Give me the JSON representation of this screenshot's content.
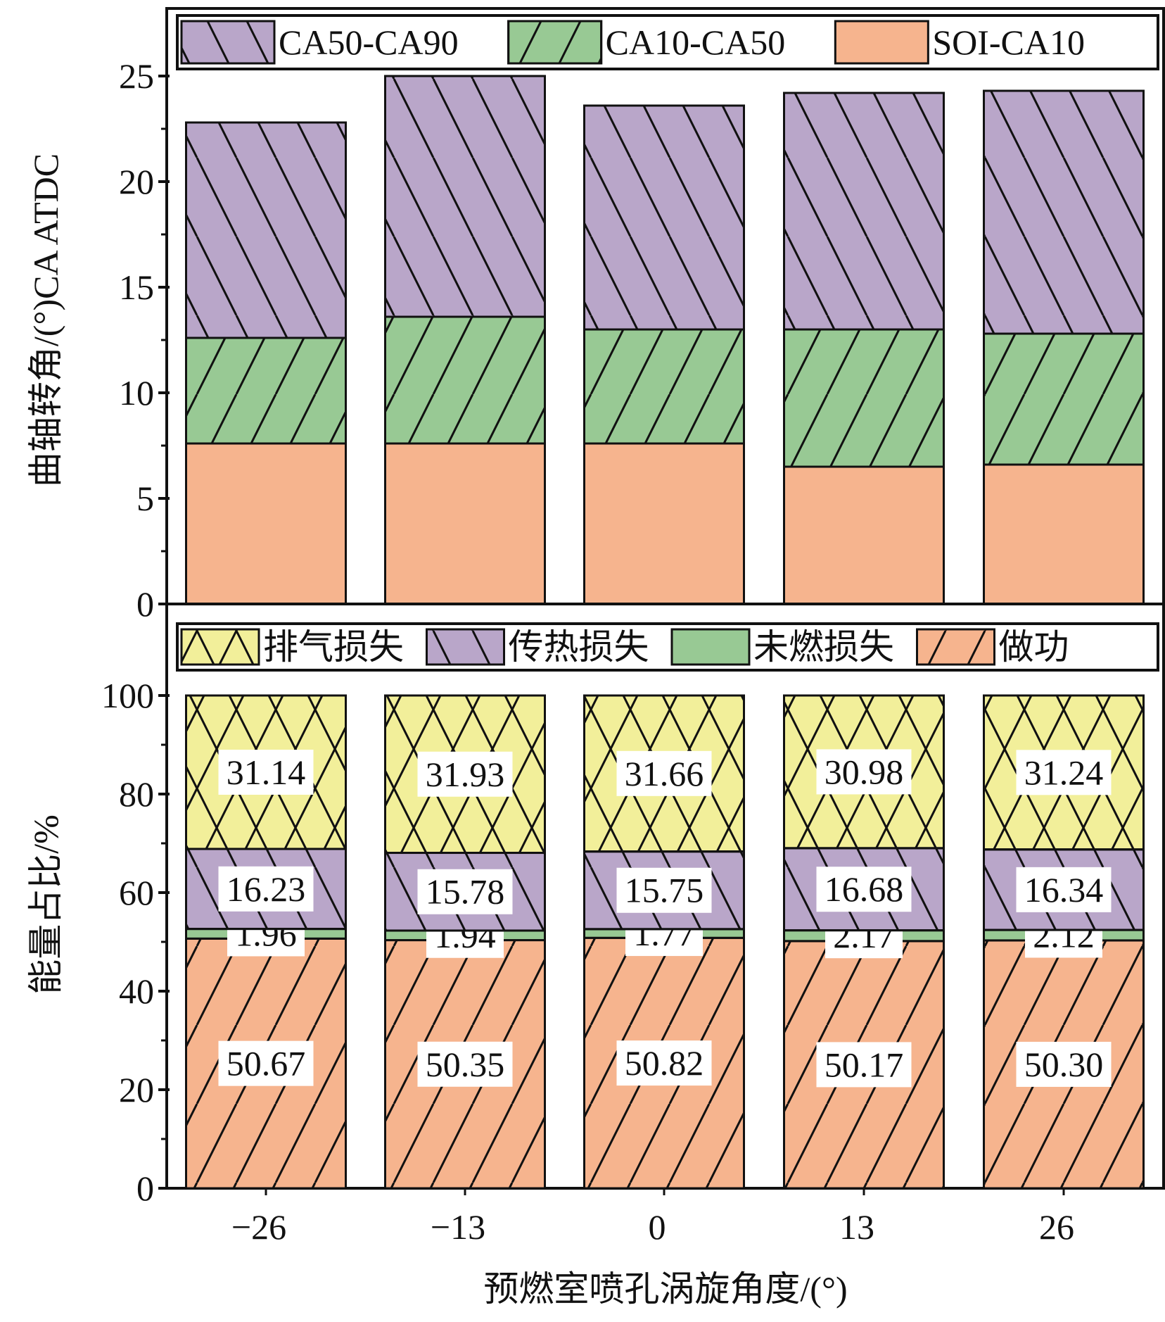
{
  "colors": {
    "purple": "#b9a6c9",
    "green": "#98c994",
    "orange": "#f6b48e",
    "yellow": "#f2ef9a"
  },
  "chart_data": [
    {
      "type": "bar",
      "stacked": true,
      "title": "",
      "xlabel": "",
      "ylabel": "曲轴转角/(°)CA ATDC",
      "ylim": [
        0,
        25
      ],
      "yticks": [
        "0",
        "5",
        "10",
        "15",
        "20",
        "25"
      ],
      "categories": [
        "-26",
        "-13",
        "0",
        "13",
        "26"
      ],
      "legend_position": "top",
      "legend": [
        "CA50-CA90",
        "CA10-CA50",
        "SOI-CA10"
      ],
      "series": [
        {
          "name": "SOI-CA10",
          "color": "orange",
          "hatch": "none",
          "values": [
            7.6,
            7.6,
            7.6,
            6.5,
            6.6
          ]
        },
        {
          "name": "CA10-CA50",
          "color": "green",
          "hatch": "slash",
          "values": [
            5.0,
            6.0,
            5.4,
            6.5,
            6.2
          ]
        },
        {
          "name": "CA50-CA90",
          "color": "purple",
          "hatch": "backslash",
          "values": [
            10.2,
            11.4,
            10.6,
            11.2,
            11.5
          ]
        }
      ]
    },
    {
      "type": "bar",
      "stacked": true,
      "title": "",
      "xlabel": "预燃室喷孔涡旋角度/(°)",
      "ylabel": "能量占比/%",
      "ylim": [
        0,
        100
      ],
      "yticks": [
        "0",
        "20",
        "40",
        "60",
        "80",
        "100"
      ],
      "categories": [
        "−26",
        "−13",
        "0",
        "13",
        "26"
      ],
      "legend_position": "top",
      "legend": [
        "排气损失",
        "传热损失",
        "未燃损失",
        "做功"
      ],
      "series": [
        {
          "name": "做功",
          "color": "orange",
          "hatch": "slash",
          "values": [
            50.67,
            50.35,
            50.82,
            50.17,
            50.3
          ],
          "labels": [
            "50.67",
            "50.35",
            "50.82",
            "50.17",
            "50.30"
          ]
        },
        {
          "name": "未燃损失",
          "color": "green",
          "hatch": "none",
          "values": [
            1.96,
            1.94,
            1.77,
            2.17,
            2.12
          ],
          "labels": [
            "1.96",
            "1.94",
            "1.77",
            "2.17",
            "2.12"
          ]
        },
        {
          "name": "传热损失",
          "color": "purple",
          "hatch": "backslash",
          "values": [
            16.23,
            15.78,
            15.75,
            16.68,
            16.34
          ],
          "labels": [
            "16.23",
            "15.78",
            "15.75",
            "16.68",
            "16.34"
          ]
        },
        {
          "name": "排气损失",
          "color": "yellow",
          "hatch": "cross",
          "values": [
            31.14,
            31.93,
            31.66,
            30.98,
            31.24
          ],
          "labels": [
            "31.14",
            "31.93",
            "31.66",
            "30.98",
            "31.24"
          ]
        }
      ]
    }
  ]
}
